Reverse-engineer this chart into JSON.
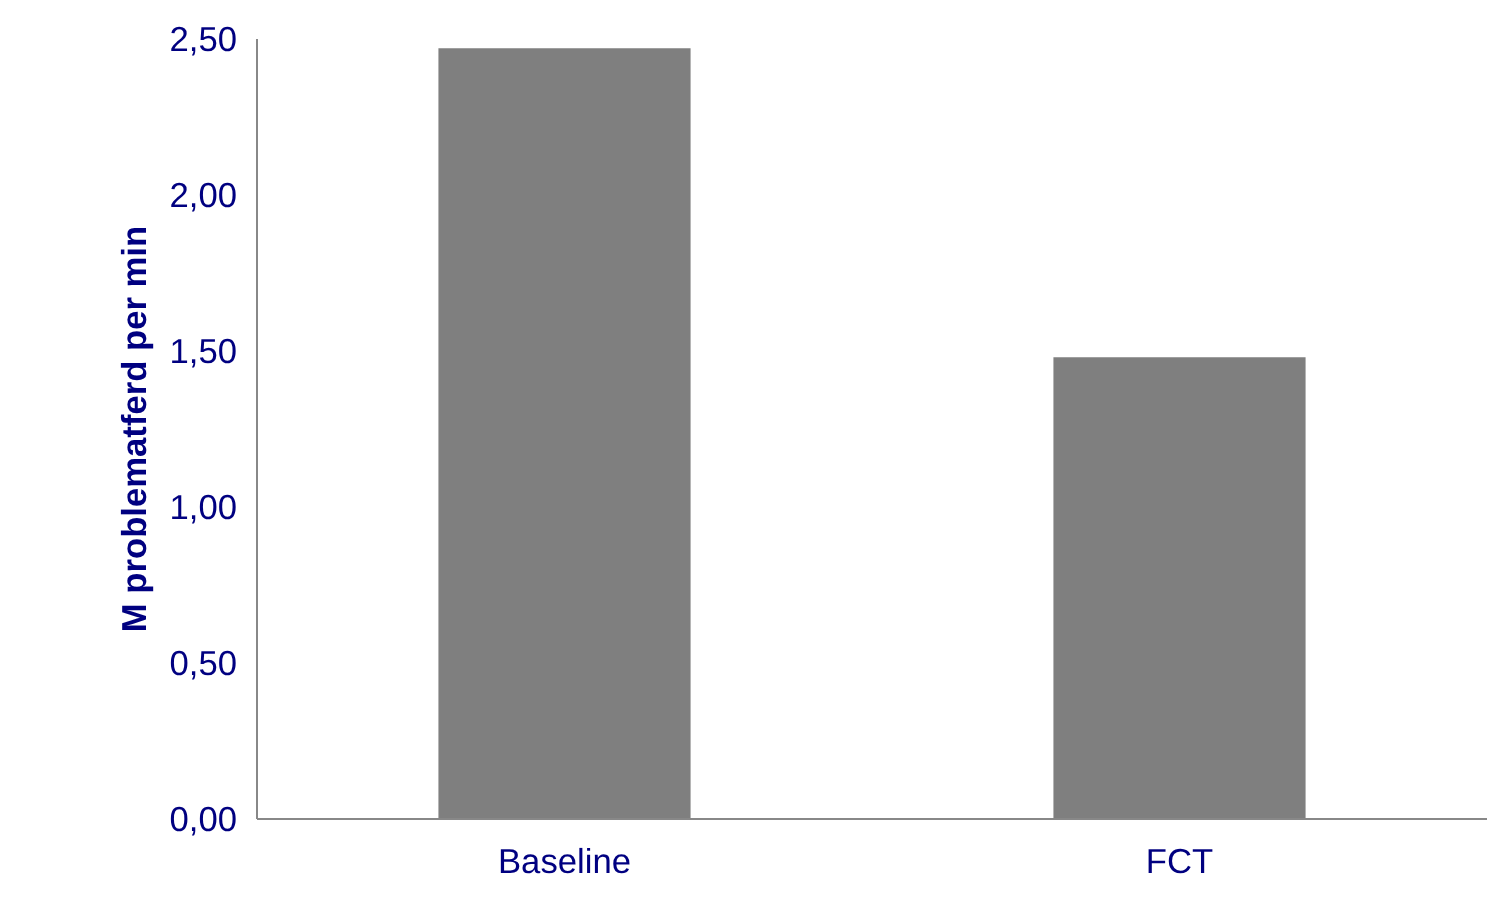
{
  "chart_data": {
    "type": "bar",
    "ylabel": "M problematferd per min",
    "categories": [
      "Baseline",
      "FCT"
    ],
    "values": [
      2.47,
      1.48
    ],
    "color": "#7f7f7f",
    "ylim": [
      0,
      2.5
    ],
    "yticks": [
      {
        "value": 0,
        "label": "0,00"
      },
      {
        "value": 0.5,
        "label": "0,50"
      },
      {
        "value": 1,
        "label": "1,00"
      },
      {
        "value": 1.5,
        "label": "1,50"
      },
      {
        "value": 2,
        "label": "2,00"
      },
      {
        "value": 2.5,
        "label": "2,50"
      }
    ],
    "grid": false
  }
}
